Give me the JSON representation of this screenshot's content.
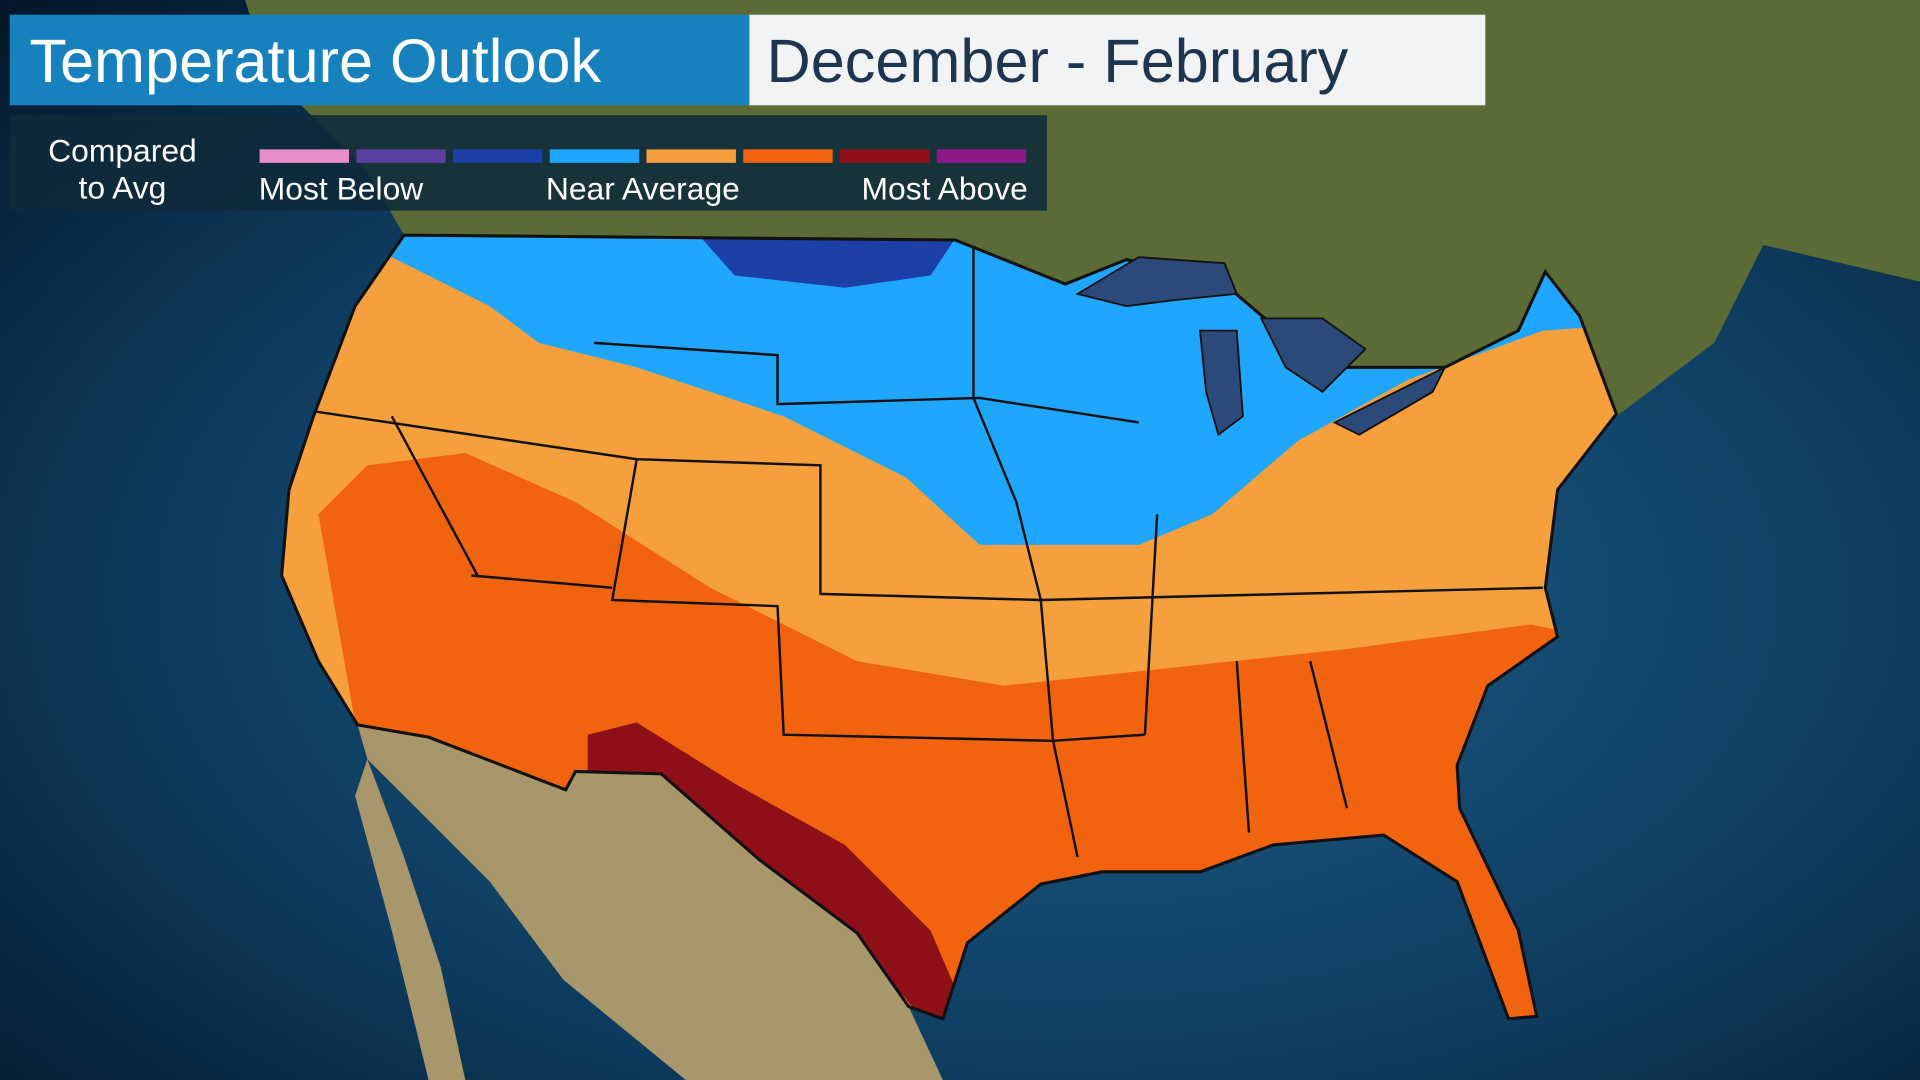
{
  "header": {
    "title": "Temperature Outlook",
    "period": "December - February"
  },
  "legend": {
    "title_lines": [
      "Compared",
      "to Avg"
    ],
    "colors": [
      "#e88ecb",
      "#5a3f9e",
      "#1c3fa8",
      "#1fa7ff",
      "#f5a03c",
      "#f2630f",
      "#8e0f17",
      "#8c1a8a"
    ],
    "labels": [
      "Most Below",
      "Near Average",
      "Most Above"
    ]
  }
}
